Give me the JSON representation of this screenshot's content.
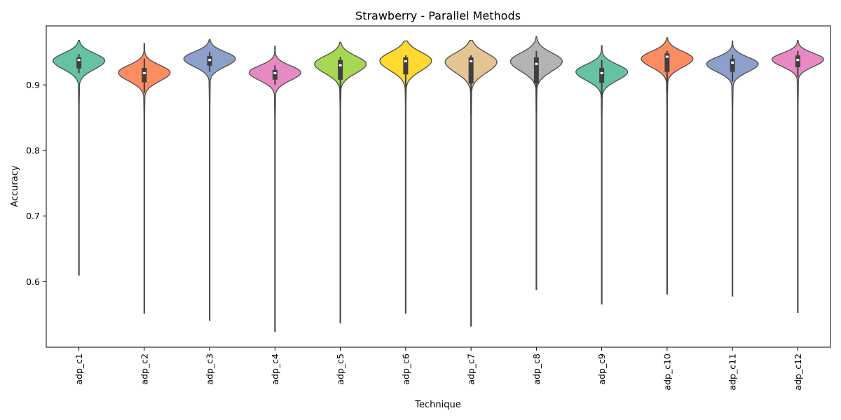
{
  "chart_data": {
    "type": "violin",
    "title": "Strawberry - Parallel Methods",
    "xlabel": "Technique",
    "ylabel": "Accuracy",
    "ylim": [
      0.5,
      0.99
    ],
    "yticks": [
      0.6,
      0.7,
      0.8,
      0.9
    ],
    "ytick_labels": [
      "0.6",
      "0.7",
      "0.8",
      "0.9"
    ],
    "grid": false,
    "legend": "none",
    "categories": [
      "adp_c1",
      "adp_c2",
      "adp_c3",
      "adp_c4",
      "adp_c5",
      "adp_c6",
      "adp_c7",
      "adp_c8",
      "adp_c9",
      "adp_c10",
      "adp_c11",
      "adp_c12"
    ],
    "series": [
      {
        "color": "#66c2a5",
        "median": 0.938,
        "q1": 0.925,
        "q3": 0.942,
        "whisker_low": 0.918,
        "whisker_high": 0.947,
        "min": 0.61,
        "max": 0.968,
        "mode": 0.937,
        "spread": 0.013
      },
      {
        "color": "#fc8d62",
        "median": 0.918,
        "q1": 0.904,
        "q3": 0.926,
        "whisker_low": 0.888,
        "whisker_high": 0.94,
        "min": 0.552,
        "max": 0.963,
        "mode": 0.919,
        "spread": 0.013
      },
      {
        "color": "#8da0cb",
        "median": 0.938,
        "q1": 0.929,
        "q3": 0.944,
        "whisker_low": 0.92,
        "whisker_high": 0.95,
        "min": 0.541,
        "max": 0.969,
        "mode": 0.94,
        "spread": 0.012
      },
      {
        "color": "#e78ac3",
        "median": 0.918,
        "q1": 0.908,
        "q3": 0.923,
        "whisker_low": 0.9,
        "whisker_high": 0.93,
        "min": 0.524,
        "max": 0.959,
        "mode": 0.919,
        "spread": 0.012
      },
      {
        "color": "#a6d854",
        "median": 0.93,
        "q1": 0.908,
        "q3": 0.938,
        "whisker_low": 0.878,
        "whisker_high": 0.943,
        "min": 0.537,
        "max": 0.965,
        "mode": 0.932,
        "spread": 0.014
      },
      {
        "color": "#ffd92f",
        "median": 0.936,
        "q1": 0.916,
        "q3": 0.942,
        "whisker_low": 0.89,
        "whisker_high": 0.945,
        "min": 0.552,
        "max": 0.967,
        "mode": 0.937,
        "spread": 0.015
      },
      {
        "color": "#e5c494",
        "median": 0.936,
        "q1": 0.902,
        "q3": 0.942,
        "whisker_low": 0.855,
        "whisker_high": 0.945,
        "min": 0.532,
        "max": 0.968,
        "mode": 0.935,
        "spread": 0.016
      },
      {
        "color": "#b3b3b3",
        "median": 0.932,
        "q1": 0.902,
        "q3": 0.942,
        "whisker_low": 0.856,
        "whisker_high": 0.952,
        "min": 0.588,
        "max": 0.974,
        "mode": 0.936,
        "spread": 0.015
      },
      {
        "color": "#66c2a5",
        "median": 0.918,
        "q1": 0.903,
        "q3": 0.926,
        "whisker_low": 0.88,
        "whisker_high": 0.938,
        "min": 0.566,
        "max": 0.96,
        "mode": 0.92,
        "spread": 0.013
      },
      {
        "color": "#fc8d62",
        "median": 0.943,
        "q1": 0.92,
        "q3": 0.948,
        "whisker_low": 0.888,
        "whisker_high": 0.952,
        "min": 0.581,
        "max": 0.972,
        "mode": 0.94,
        "spread": 0.013
      },
      {
        "color": "#8da0cb",
        "median": 0.934,
        "q1": 0.92,
        "q3": 0.94,
        "whisker_low": 0.905,
        "whisker_high": 0.946,
        "min": 0.578,
        "max": 0.967,
        "mode": 0.932,
        "spread": 0.012
      },
      {
        "color": "#e78ac3",
        "median": 0.938,
        "q1": 0.927,
        "q3": 0.945,
        "whisker_low": 0.912,
        "whisker_high": 0.952,
        "min": 0.553,
        "max": 0.968,
        "mode": 0.939,
        "spread": 0.011
      }
    ]
  }
}
